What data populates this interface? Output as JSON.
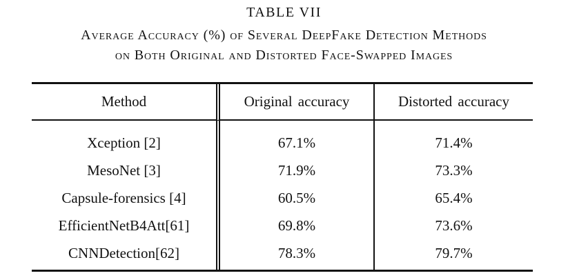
{
  "caption": {
    "label": "TABLE VII",
    "line1": "Average Accuracy (%) of Several DeepFake Detection Methods",
    "line2": "on Both Original and Distorted Face-Swapped Images"
  },
  "table": {
    "columns": [
      "Method",
      "Original accuracy",
      "Distorted accuracy"
    ],
    "rows": [
      {
        "method": "Xception [2]",
        "original": "67.1%",
        "distorted": "71.4%"
      },
      {
        "method": "MesoNet [3]",
        "original": "71.9%",
        "distorted": "73.3%"
      },
      {
        "method": "Capsule-forensics [4]",
        "original": "60.5%",
        "distorted": "65.4%"
      },
      {
        "method": "EfficientNetB4Att[61]",
        "original": "69.8%",
        "distorted": "73.6%"
      },
      {
        "method": "CNNDetection[62]",
        "original": "78.3%",
        "distorted": "79.7%"
      }
    ]
  },
  "colors": {
    "text": "#111111",
    "background": "#ffffff",
    "rule": "#111111"
  }
}
